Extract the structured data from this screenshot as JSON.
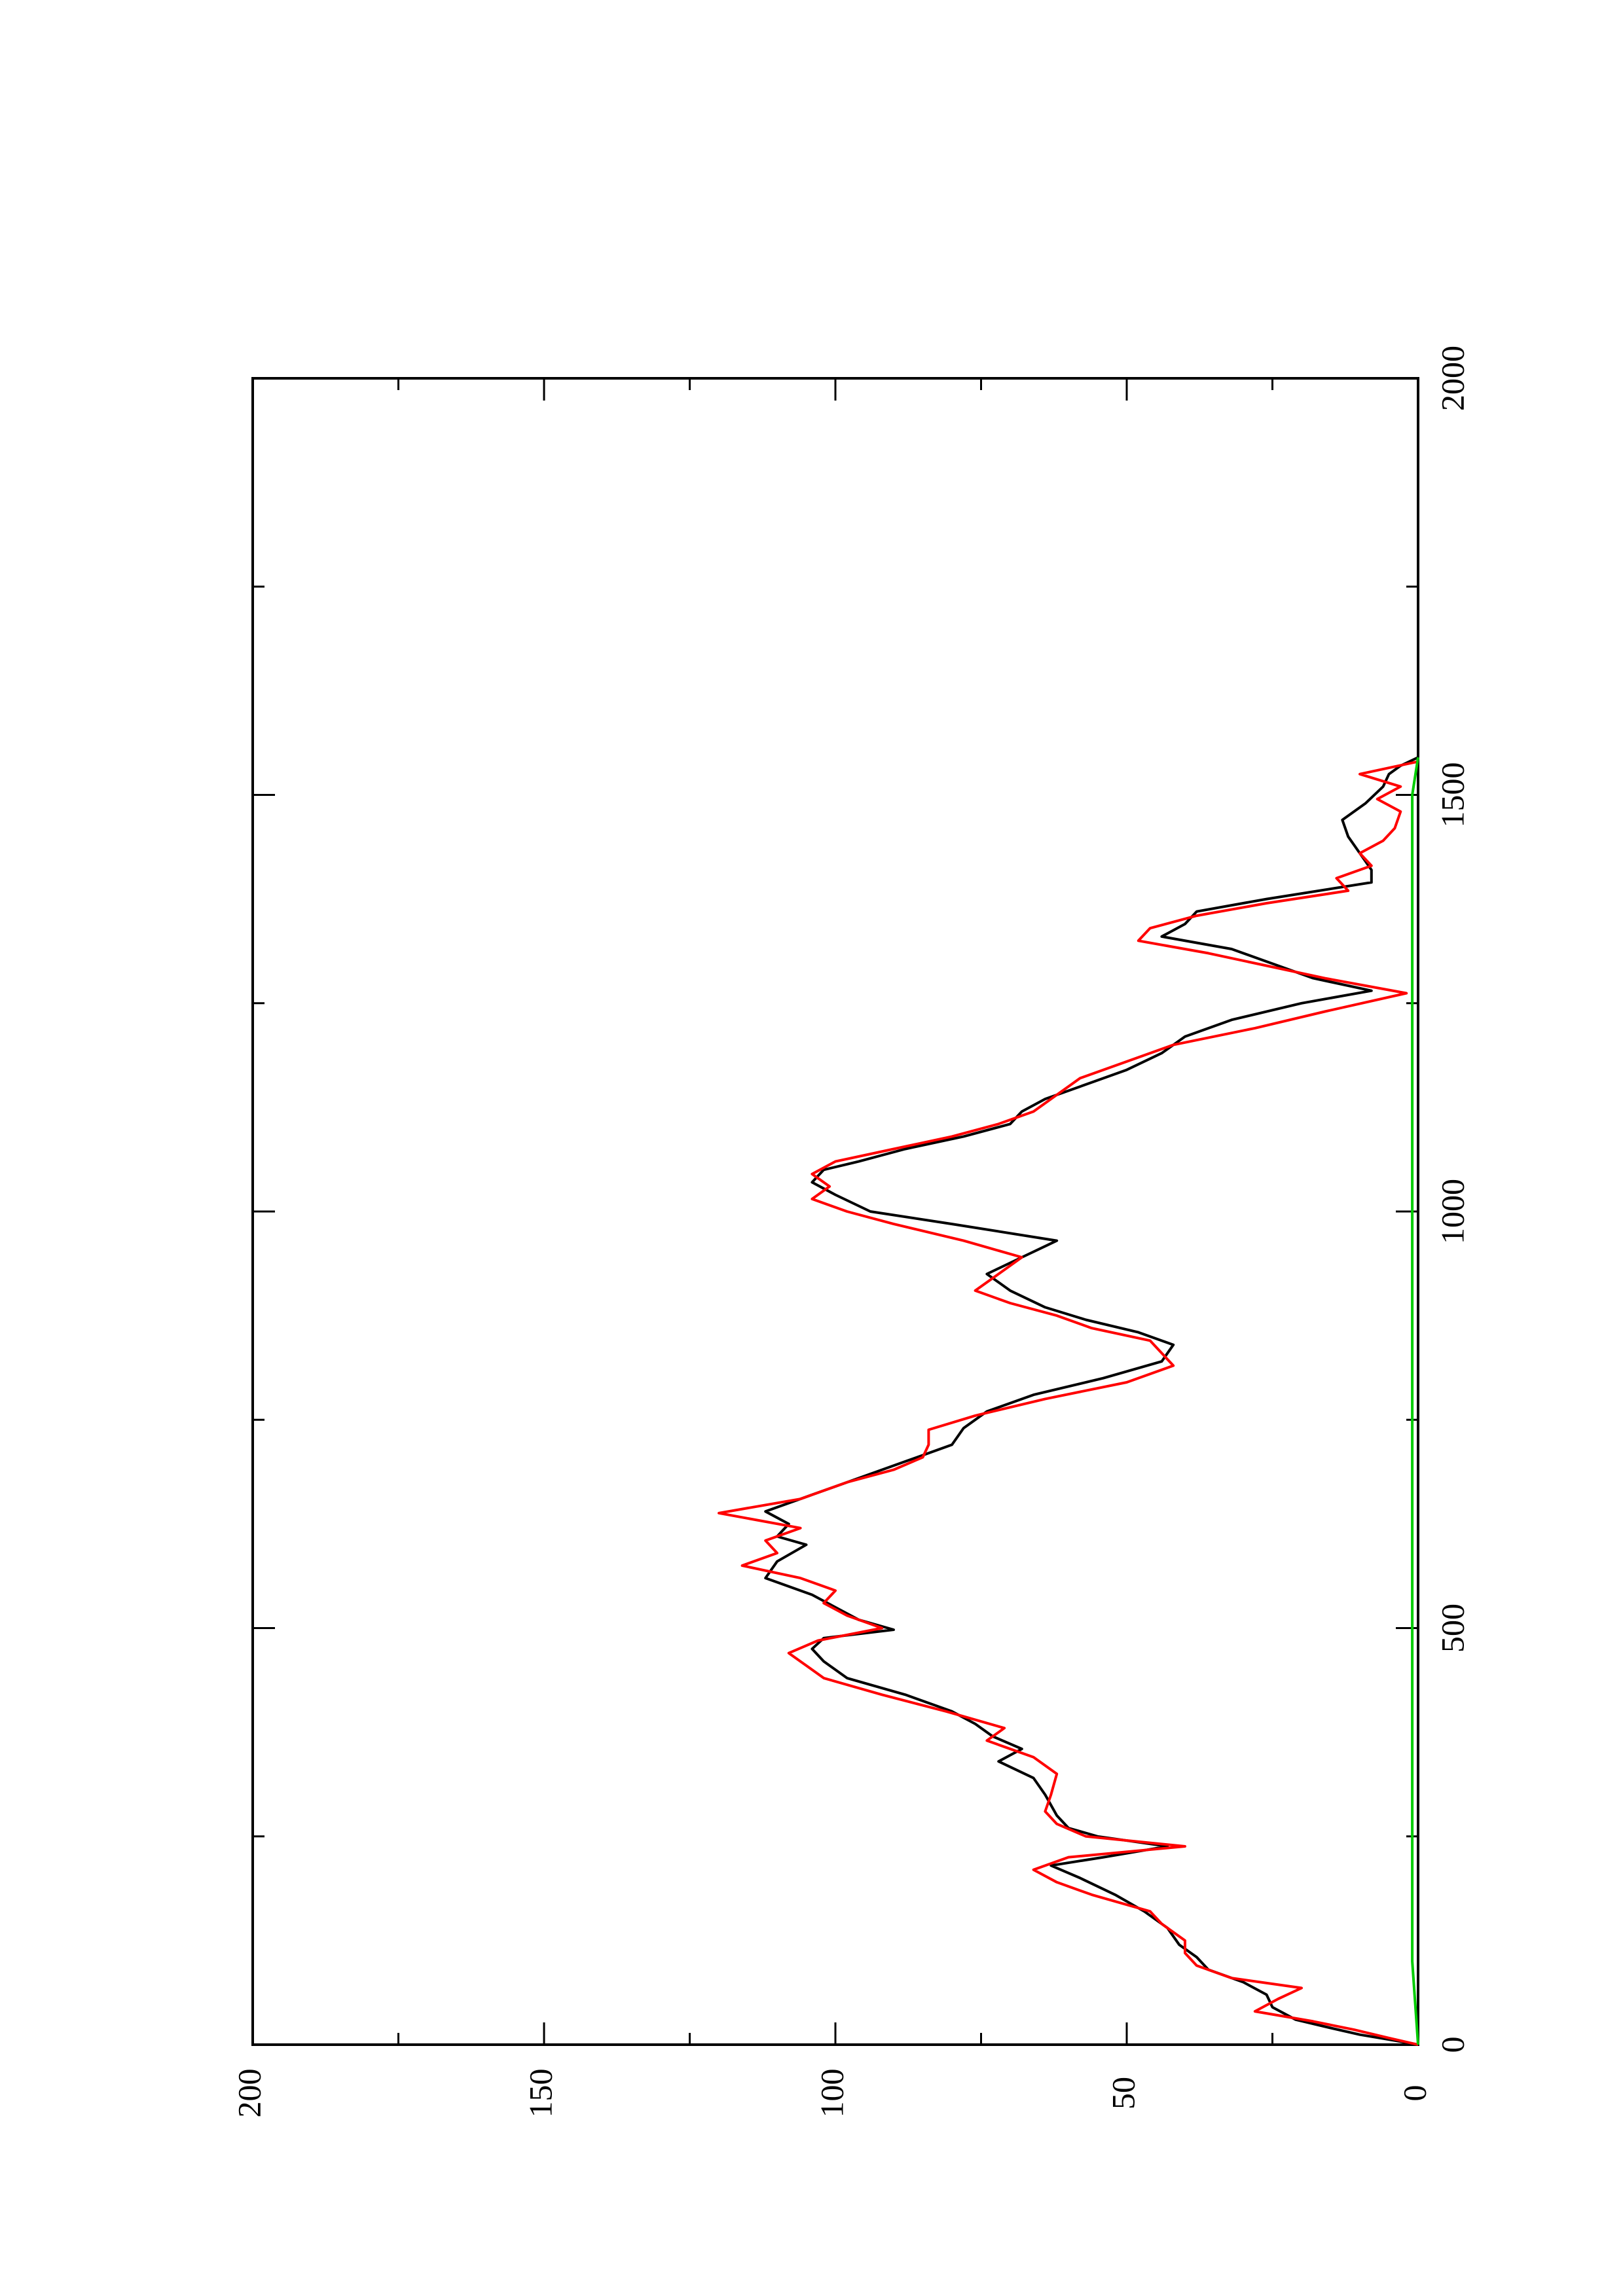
{
  "chart_data": {
    "type": "line",
    "orientation": "rotated 90 degrees counter-clockwise",
    "title": "",
    "xlabel": "",
    "ylabel": "",
    "xlim": [
      0,
      2000
    ],
    "ylim": [
      0,
      200
    ],
    "x_ticks": [
      0,
      500,
      1000,
      1500,
      2000
    ],
    "y_ticks": [
      0,
      50,
      100,
      150,
      200
    ],
    "x_minor_step": 250,
    "y_minor_step": 25,
    "grid": false,
    "legend": "none",
    "series": [
      {
        "color": "#000000",
        "points": [
          [
            0,
            0
          ],
          [
            5,
            4
          ],
          [
            12,
            10
          ],
          [
            20,
            15
          ],
          [
            30,
            21
          ],
          [
            45,
            25
          ],
          [
            60,
            26
          ],
          [
            75,
            30
          ],
          [
            90,
            36
          ],
          [
            105,
            38
          ],
          [
            120,
            41
          ],
          [
            140,
            43
          ],
          [
            160,
            47
          ],
          [
            180,
            52
          ],
          [
            200,
            58
          ],
          [
            215,
            63
          ],
          [
            225,
            54
          ],
          [
            238,
            43
          ],
          [
            250,
            55
          ],
          [
            260,
            60
          ],
          [
            275,
            62
          ],
          [
            300,
            64
          ],
          [
            320,
            66
          ],
          [
            340,
            72
          ],
          [
            355,
            68
          ],
          [
            370,
            73
          ],
          [
            385,
            76
          ],
          [
            400,
            80
          ],
          [
            420,
            88
          ],
          [
            440,
            98
          ],
          [
            460,
            102
          ],
          [
            475,
            104
          ],
          [
            488,
            102
          ],
          [
            498,
            90
          ],
          [
            510,
            96
          ],
          [
            525,
            100
          ],
          [
            540,
            104
          ],
          [
            560,
            112
          ],
          [
            580,
            110
          ],
          [
            600,
            105
          ],
          [
            610,
            110
          ],
          [
            625,
            108
          ],
          [
            640,
            112
          ],
          [
            660,
            104
          ],
          [
            680,
            96
          ],
          [
            700,
            88
          ],
          [
            720,
            80
          ],
          [
            740,
            78
          ],
          [
            760,
            74
          ],
          [
            780,
            66
          ],
          [
            800,
            54
          ],
          [
            820,
            44
          ],
          [
            840,
            42
          ],
          [
            855,
            48
          ],
          [
            870,
            57
          ],
          [
            885,
            64
          ],
          [
            905,
            70
          ],
          [
            925,
            74
          ],
          [
            945,
            68
          ],
          [
            965,
            62
          ],
          [
            985,
            80
          ],
          [
            1000,
            94
          ],
          [
            1020,
            100
          ],
          [
            1035,
            104
          ],
          [
            1050,
            102
          ],
          [
            1060,
            96
          ],
          [
            1075,
            88
          ],
          [
            1090,
            78
          ],
          [
            1105,
            70
          ],
          [
            1120,
            68
          ],
          [
            1135,
            64
          ],
          [
            1150,
            58
          ],
          [
            1170,
            50
          ],
          [
            1190,
            44
          ],
          [
            1210,
            40
          ],
          [
            1230,
            32
          ],
          [
            1250,
            20
          ],
          [
            1265,
            8
          ],
          [
            1280,
            18
          ],
          [
            1300,
            26
          ],
          [
            1315,
            32
          ],
          [
            1330,
            44
          ],
          [
            1345,
            40
          ],
          [
            1360,
            38
          ],
          [
            1375,
            26
          ],
          [
            1395,
            8
          ],
          [
            1410,
            8
          ],
          [
            1430,
            10
          ],
          [
            1450,
            12
          ],
          [
            1470,
            13
          ],
          [
            1490,
            9
          ],
          [
            1510,
            6
          ],
          [
            1525,
            5
          ],
          [
            1535,
            3
          ],
          [
            1545,
            0
          ]
        ]
      },
      {
        "color": "#ff0000",
        "points": [
          [
            0,
            0
          ],
          [
            8,
            5
          ],
          [
            18,
            11
          ],
          [
            28,
            18
          ],
          [
            40,
            28
          ],
          [
            55,
            24
          ],
          [
            68,
            20
          ],
          [
            80,
            32
          ],
          [
            95,
            38
          ],
          [
            110,
            40
          ],
          [
            125,
            40
          ],
          [
            145,
            44
          ],
          [
            160,
            46
          ],
          [
            180,
            56
          ],
          [
            195,
            62
          ],
          [
            210,
            66
          ],
          [
            225,
            60
          ],
          [
            238,
            40
          ],
          [
            250,
            57
          ],
          [
            265,
            62
          ],
          [
            280,
            64
          ],
          [
            300,
            63
          ],
          [
            325,
            62
          ],
          [
            345,
            66
          ],
          [
            365,
            74
          ],
          [
            380,
            71
          ],
          [
            400,
            81
          ],
          [
            420,
            92
          ],
          [
            440,
            102
          ],
          [
            455,
            105
          ],
          [
            470,
            108
          ],
          [
            485,
            103
          ],
          [
            500,
            92
          ],
          [
            515,
            98
          ],
          [
            530,
            102
          ],
          [
            545,
            100
          ],
          [
            560,
            106
          ],
          [
            575,
            116
          ],
          [
            590,
            110
          ],
          [
            605,
            112
          ],
          [
            620,
            106
          ],
          [
            638,
            120
          ],
          [
            655,
            106
          ],
          [
            675,
            98
          ],
          [
            690,
            90
          ],
          [
            705,
            85
          ],
          [
            720,
            84
          ],
          [
            738,
            84
          ],
          [
            755,
            76
          ],
          [
            775,
            64
          ],
          [
            795,
            50
          ],
          [
            815,
            42
          ],
          [
            830,
            44
          ],
          [
            845,
            46
          ],
          [
            860,
            56
          ],
          [
            875,
            62
          ],
          [
            890,
            70
          ],
          [
            905,
            76
          ],
          [
            925,
            72
          ],
          [
            945,
            68
          ],
          [
            965,
            78
          ],
          [
            985,
            90
          ],
          [
            1000,
            98
          ],
          [
            1015,
            104
          ],
          [
            1030,
            101
          ],
          [
            1045,
            104
          ],
          [
            1060,
            100
          ],
          [
            1075,
            90
          ],
          [
            1090,
            80
          ],
          [
            1105,
            72
          ],
          [
            1120,
            66
          ],
          [
            1140,
            62
          ],
          [
            1160,
            58
          ],
          [
            1180,
            50
          ],
          [
            1200,
            42
          ],
          [
            1220,
            28
          ],
          [
            1240,
            16
          ],
          [
            1262,
            2
          ],
          [
            1280,
            16
          ],
          [
            1295,
            26
          ],
          [
            1310,
            36
          ],
          [
            1325,
            48
          ],
          [
            1340,
            46
          ],
          [
            1355,
            38
          ],
          [
            1370,
            26
          ],
          [
            1385,
            12
          ],
          [
            1400,
            14
          ],
          [
            1415,
            8
          ],
          [
            1430,
            10
          ],
          [
            1445,
            6
          ],
          [
            1460,
            4
          ],
          [
            1480,
            3
          ],
          [
            1495,
            7
          ],
          [
            1510,
            3
          ],
          [
            1525,
            10
          ],
          [
            1540,
            0
          ]
        ]
      },
      {
        "color": "#00cc00",
        "points": [
          [
            0,
            0
          ],
          [
            100,
            1
          ],
          [
            200,
            1
          ],
          [
            300,
            1
          ],
          [
            400,
            1
          ],
          [
            500,
            1
          ],
          [
            600,
            1
          ],
          [
            700,
            1
          ],
          [
            800,
            1
          ],
          [
            900,
            1
          ],
          [
            1000,
            1
          ],
          [
            1100,
            1
          ],
          [
            1200,
            1
          ],
          [
            1300,
            1
          ],
          [
            1400,
            1
          ],
          [
            1500,
            1
          ],
          [
            1545,
            0
          ]
        ]
      }
    ]
  }
}
